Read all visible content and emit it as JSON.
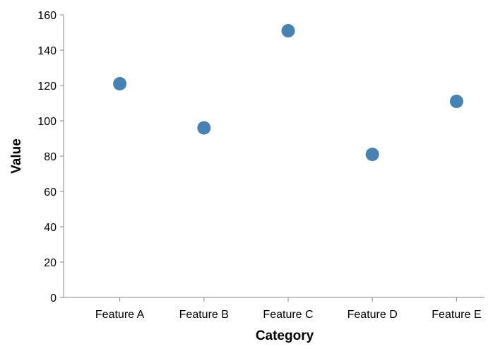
{
  "chart_data": {
    "type": "scatter",
    "categories": [
      "Feature A",
      "Feature B",
      "Feature C",
      "Feature D",
      "Feature E"
    ],
    "values": [
      121,
      96,
      151,
      81,
      111
    ],
    "xlabel": "Category",
    "ylabel": "Value",
    "ylim": [
      0,
      160
    ],
    "yticks": [
      0,
      20,
      40,
      60,
      80,
      100,
      120,
      140,
      160
    ],
    "grid": false,
    "colors": {
      "point": "#4682b4",
      "axis": "#888888",
      "text": "#000000"
    }
  }
}
